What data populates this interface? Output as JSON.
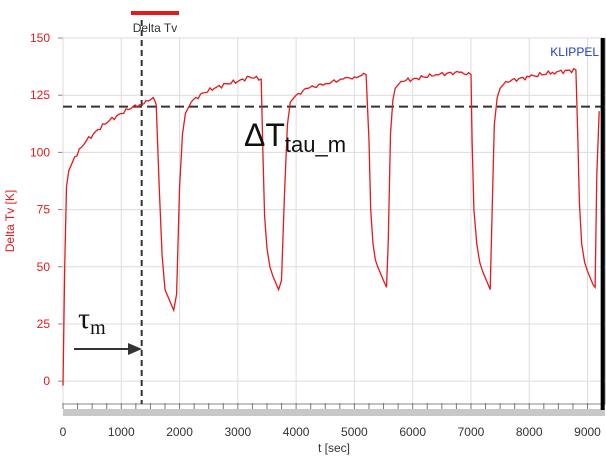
{
  "chart_data": {
    "type": "line",
    "legend": {
      "label": "Delta Tv",
      "color": "#e31a1c",
      "placement": "top-left"
    },
    "ylabel": "Delta Tv [K]",
    "xlabel": "t [sec]",
    "watermark": "KLIPPEL",
    "annotations": {
      "delta_prefix": "ΔT",
      "delta_sub": "tau_m",
      "tau_symbol": "τ",
      "tau_sub": "m"
    },
    "xlim": [
      0,
      9300
    ],
    "ylim": [
      -10,
      150
    ],
    "x_ticks": [
      0,
      1000,
      2000,
      3000,
      4000,
      5000,
      6000,
      7000,
      8000,
      9000
    ],
    "y_ticks": [
      0,
      25,
      50,
      75,
      100,
      125,
      150
    ],
    "grid": true,
    "reference_lines": {
      "tau_m_x": 1350,
      "delta_t_tau_m_y": 120
    },
    "marker_x": 9260,
    "series": [
      {
        "name": "Delta Tv",
        "color": "#e31a1c",
        "x": [
          0,
          30,
          60,
          100,
          200,
          400,
          600,
          800,
          1000,
          1200,
          1350,
          1500,
          1550,
          1600,
          1650,
          1700,
          1750,
          1800,
          1850,
          1900,
          1950,
          2000,
          2050,
          2100,
          2200,
          2400,
          2600,
          2800,
          3000,
          3200,
          3400,
          3430,
          3460,
          3500,
          3550,
          3600,
          3650,
          3700,
          3750,
          3800,
          3850,
          3900,
          4000,
          4200,
          4500,
          4800,
          5000,
          5200,
          5250,
          5280,
          5320,
          5360,
          5400,
          5450,
          5500,
          5550,
          5580,
          5620,
          5660,
          5700,
          5800,
          6000,
          6400,
          6800,
          7000,
          7020,
          7050,
          7100,
          7150,
          7200,
          7250,
          7300,
          7330,
          7360,
          7400,
          7450,
          7500,
          7600,
          8000,
          8400,
          8800,
          8830,
          8860,
          8900,
          8950,
          9000,
          9050,
          9100,
          9130,
          9160,
          9200
        ],
        "values": [
          -2,
          50,
          85,
          92,
          98,
          105,
          110,
          114,
          117,
          120,
          121,
          123,
          124,
          121,
          85,
          55,
          40,
          37,
          34,
          31,
          38,
          85,
          108,
          117,
          122,
          126,
          128,
          130,
          131,
          133,
          132,
          100,
          72,
          58,
          50,
          46,
          43,
          40,
          44,
          82,
          112,
          122,
          125,
          128,
          130,
          132,
          133,
          134,
          105,
          75,
          60,
          53,
          50,
          47,
          44,
          41,
          60,
          108,
          123,
          128,
          131,
          132,
          134,
          135,
          134,
          105,
          75,
          60,
          52,
          48,
          45,
          42,
          40,
          70,
          112,
          124,
          128,
          131,
          133,
          135,
          136,
          110,
          78,
          60,
          52,
          48,
          45,
          42,
          41,
          90,
          118
        ]
      }
    ]
  }
}
